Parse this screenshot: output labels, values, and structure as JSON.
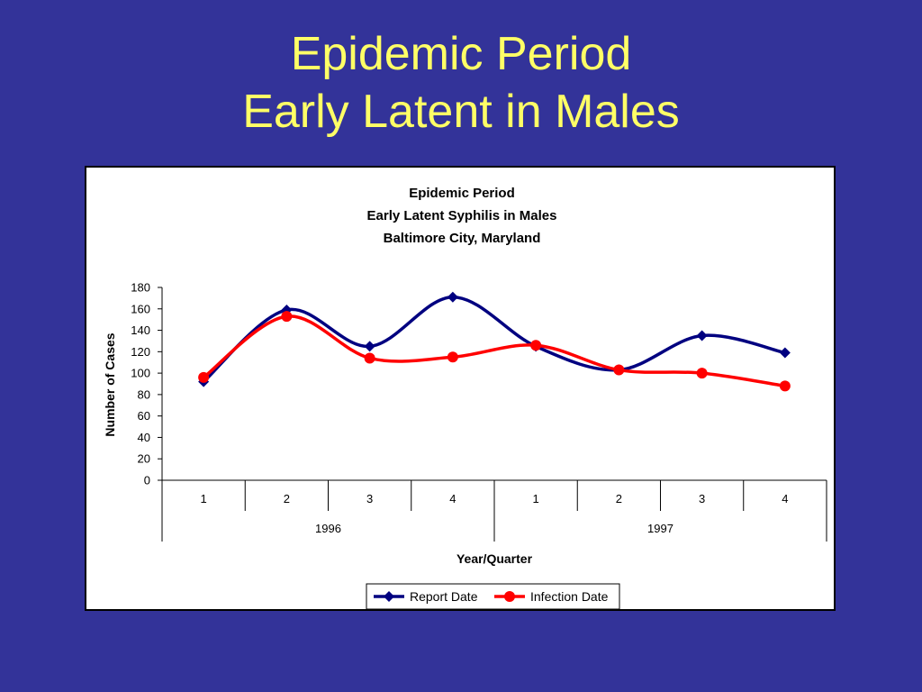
{
  "slide": {
    "title_line1": "Epidemic Period",
    "title_line2": "Early Latent in Males"
  },
  "colors": {
    "background": "#333399",
    "title": "#FFFF66",
    "report_date": "#000080",
    "infection_date": "#FF0000"
  },
  "chart_data": {
    "type": "line",
    "title": [
      "Epidemic Period",
      "Early Latent Syphilis in Males",
      "Baltimore City, Maryland"
    ],
    "xlabel": "Year/Quarter",
    "ylabel": "Number of Cases",
    "categories": [
      "1",
      "2",
      "3",
      "4",
      "1",
      "2",
      "3",
      "4"
    ],
    "groups": [
      {
        "label": "1996",
        "span": 4
      },
      {
        "label": "1997",
        "span": 4
      }
    ],
    "ylim": [
      0,
      180
    ],
    "yticks": [
      0,
      20,
      40,
      60,
      80,
      100,
      120,
      140,
      160,
      180
    ],
    "grid": false,
    "legend": "bottom",
    "series": [
      {
        "name": "Report Date",
        "marker": "diamond",
        "color": "#000080",
        "values": [
          92,
          159,
          125,
          171,
          125,
          103,
          135,
          119
        ]
      },
      {
        "name": "Infection Date",
        "marker": "circle",
        "color": "#FF0000",
        "values": [
          96,
          153,
          114,
          115,
          126,
          103,
          100,
          88
        ]
      }
    ]
  }
}
